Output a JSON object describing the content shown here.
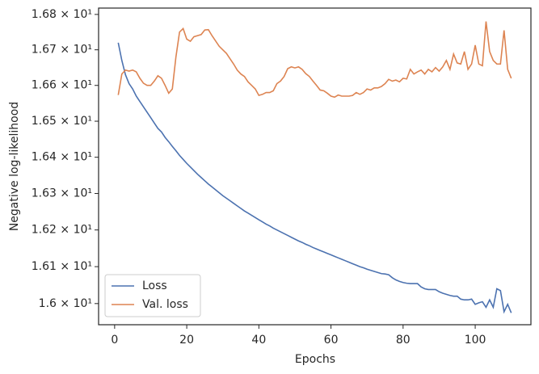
{
  "chart_data": {
    "type": "line",
    "xlabel": "Epochs",
    "ylabel": "Negative log-likelihood",
    "yscale": "log",
    "legend": "lower left",
    "x": [
      1,
      2,
      3,
      4,
      5,
      6,
      7,
      8,
      9,
      10,
      11,
      12,
      13,
      14,
      15,
      16,
      17,
      18,
      19,
      20,
      21,
      22,
      23,
      24,
      25,
      26,
      27,
      28,
      29,
      30,
      31,
      32,
      33,
      34,
      35,
      36,
      37,
      38,
      39,
      40,
      41,
      42,
      43,
      44,
      45,
      46,
      47,
      48,
      49,
      50,
      51,
      52,
      53,
      54,
      55,
      56,
      57,
      58,
      59,
      60,
      61,
      62,
      63,
      64,
      65,
      66,
      67,
      68,
      69,
      70,
      71,
      72,
      73,
      74,
      75,
      76,
      77,
      78,
      79,
      80,
      81,
      82,
      83,
      84,
      85,
      86,
      87,
      88,
      89,
      90,
      91,
      92,
      93,
      94,
      95,
      96,
      97,
      98,
      99,
      100,
      101,
      102,
      103,
      104,
      105,
      106,
      107,
      108,
      109,
      110
    ],
    "series": [
      {
        "name": "Loss",
        "color": "#4c72b0",
        "values": [
          16.72,
          16.67,
          16.63,
          16.605,
          16.59,
          16.57,
          16.555,
          16.54,
          16.525,
          16.51,
          16.495,
          16.48,
          16.47,
          16.455,
          16.443,
          16.43,
          16.418,
          16.405,
          16.394,
          16.383,
          16.373,
          16.363,
          16.353,
          16.344,
          16.335,
          16.326,
          16.318,
          16.31,
          16.302,
          16.294,
          16.287,
          16.28,
          16.273,
          16.266,
          16.259,
          16.252,
          16.246,
          16.24,
          16.234,
          16.228,
          16.222,
          16.216,
          16.211,
          16.205,
          16.2,
          16.195,
          16.19,
          16.185,
          16.18,
          16.175,
          16.17,
          16.166,
          16.161,
          16.157,
          16.152,
          16.148,
          16.144,
          16.14,
          16.136,
          16.132,
          16.128,
          16.124,
          16.12,
          16.116,
          16.112,
          16.108,
          16.104,
          16.1,
          16.097,
          16.093,
          16.09,
          16.087,
          16.084,
          16.081,
          16.08,
          16.078,
          16.07,
          16.064,
          16.06,
          16.057,
          16.055,
          16.054,
          16.054,
          16.054,
          16.045,
          16.04,
          16.038,
          16.038,
          16.038,
          16.032,
          16.028,
          16.025,
          16.022,
          16.02,
          16.02,
          16.012,
          16.01,
          16.01,
          16.012,
          15.998,
          16.002,
          16.005,
          15.99,
          16.01,
          15.99,
          16.04,
          16.035,
          15.978,
          15.998,
          15.975
        ]
      },
      {
        "name": "Val. loss",
        "color": "#dd8452",
        "values": [
          16.573,
          16.632,
          16.643,
          16.64,
          16.643,
          16.638,
          16.62,
          16.606,
          16.6,
          16.6,
          16.612,
          16.627,
          16.62,
          16.6,
          16.578,
          16.59,
          16.68,
          16.75,
          16.76,
          16.73,
          16.724,
          16.737,
          16.74,
          16.743,
          16.756,
          16.757,
          16.74,
          16.725,
          16.71,
          16.7,
          16.69,
          16.675,
          16.66,
          16.643,
          16.632,
          16.625,
          16.61,
          16.6,
          16.59,
          16.572,
          16.575,
          16.58,
          16.58,
          16.585,
          16.605,
          16.612,
          16.625,
          16.647,
          16.652,
          16.649,
          16.652,
          16.645,
          16.633,
          16.625,
          16.612,
          16.6,
          16.587,
          16.585,
          16.578,
          16.57,
          16.567,
          16.573,
          16.57,
          16.57,
          16.57,
          16.572,
          16.58,
          16.575,
          16.58,
          16.59,
          16.587,
          16.593,
          16.593,
          16.597,
          16.605,
          16.617,
          16.612,
          16.615,
          16.61,
          16.62,
          16.618,
          16.645,
          16.632,
          16.638,
          16.643,
          16.632,
          16.645,
          16.638,
          16.65,
          16.64,
          16.652,
          16.67,
          16.645,
          16.688,
          16.663,
          16.66,
          16.695,
          16.645,
          16.66,
          16.713,
          16.66,
          16.655,
          16.78,
          16.695,
          16.67,
          16.66,
          16.66,
          16.755,
          16.645,
          16.62
        ]
      }
    ],
    "xlim": [
      -4.45,
      115.45
    ],
    "xticks": [
      0,
      20,
      40,
      60,
      80,
      100
    ],
    "ylim": [
      15.943,
      16.818
    ],
    "yticks": [
      {
        "value": 16.0,
        "label": "1.6 × 10¹"
      },
      {
        "value": 16.1,
        "label": "1.61 × 10¹"
      },
      {
        "value": 16.2,
        "label": "1.62 × 10¹"
      },
      {
        "value": 16.3,
        "label": "1.63 × 10¹"
      },
      {
        "value": 16.4,
        "label": "1.64 × 10¹"
      },
      {
        "value": 16.5,
        "label": "1.65 × 10¹"
      },
      {
        "value": 16.6,
        "label": "1.66 × 10¹"
      },
      {
        "value": 16.7,
        "label": "1.67 × 10¹"
      },
      {
        "value": 16.8,
        "label": "1.68 × 10¹"
      }
    ]
  }
}
